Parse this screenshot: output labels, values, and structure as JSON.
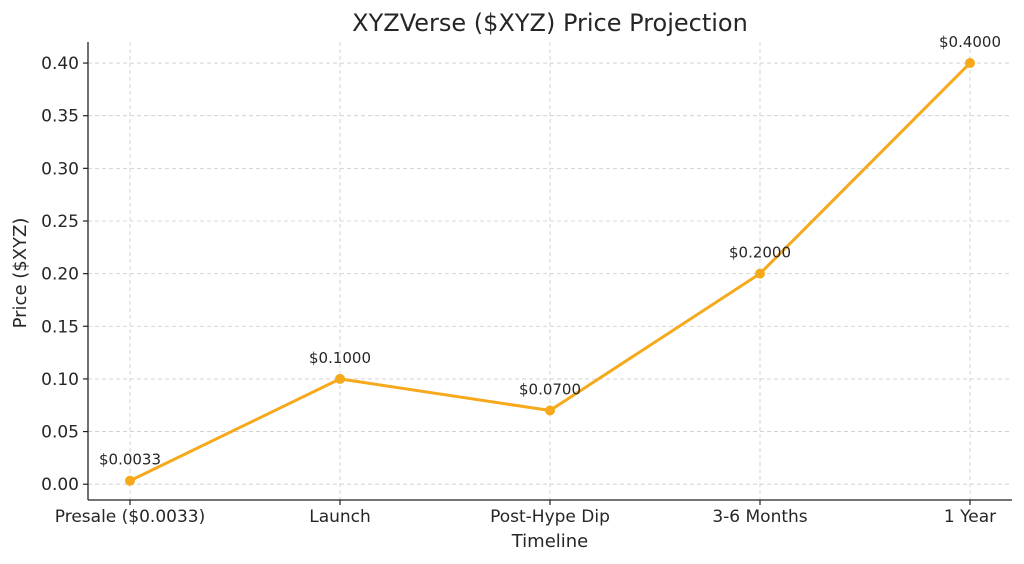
{
  "chart_data": {
    "type": "line",
    "title": "XYZVerse ($XYZ) Price Projection",
    "xlabel": "Timeline",
    "ylabel": "Price ($XYZ)",
    "categories": [
      "Presale ($0.0033)",
      "Launch",
      "Post-Hype Dip",
      "3-6 Months",
      "1 Year"
    ],
    "series": [
      {
        "values": [
          0.0033,
          0.1,
          0.07,
          0.2,
          0.4
        ],
        "color": "#f5a91b"
      }
    ],
    "data_labels": [
      "$0.0033",
      "$0.1000",
      "$0.0700",
      "$0.2000",
      "$0.4000"
    ],
    "ylim": [
      -0.015,
      0.42
    ],
    "yticks": [
      0.0,
      0.05,
      0.1,
      0.15,
      0.2,
      0.25,
      0.3,
      0.35,
      0.4
    ],
    "ytick_labels": [
      "0.00",
      "0.05",
      "0.10",
      "0.15",
      "0.20",
      "0.25",
      "0.30",
      "0.35",
      "0.40"
    ],
    "grid": true,
    "grid_style": "dashed",
    "marker": "circle"
  }
}
